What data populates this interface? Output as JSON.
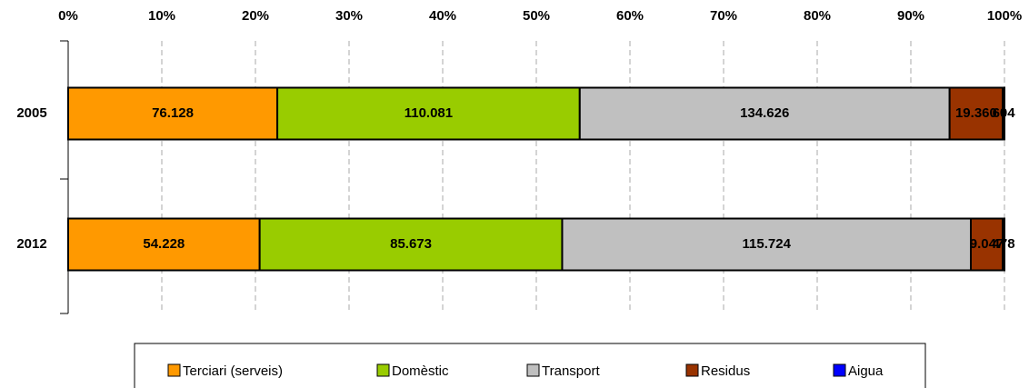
{
  "chart_data": {
    "type": "stacked-bar-100",
    "categories": [
      "2005",
      "2012"
    ],
    "series": [
      {
        "name": "Terciari (serveis)",
        "color": "#ff9900",
        "values": [
          76128,
          54228
        ],
        "value_labels": [
          "76.128",
          "54.228"
        ]
      },
      {
        "name": "Domèstic",
        "color": "#99cc00",
        "values": [
          110081,
          85673
        ],
        "value_labels": [
          "110.081",
          "85.673"
        ]
      },
      {
        "name": "Transport",
        "color": "#c0c0c0",
        "values": [
          134626,
          115724
        ],
        "value_labels": [
          "134.626",
          "115.724"
        ]
      },
      {
        "name": "Residus",
        "color": "#993300",
        "values": [
          19360,
          9047
        ],
        "value_labels": [
          "19.360",
          "9.047"
        ]
      },
      {
        "name": "Aigua",
        "color": "#0000ff",
        "values": [
          604,
          478
        ],
        "value_labels": [
          "604",
          "478"
        ]
      }
    ],
    "xlim": [
      0,
      100
    ],
    "xticks": [
      {
        "value": 0,
        "label": "0%"
      },
      {
        "value": 10,
        "label": "10%"
      },
      {
        "value": 20,
        "label": "20%"
      },
      {
        "value": 30,
        "label": "30%"
      },
      {
        "value": 40,
        "label": "40%"
      },
      {
        "value": 50,
        "label": "50%"
      },
      {
        "value": 60,
        "label": "60%"
      },
      {
        "value": 70,
        "label": "70%"
      },
      {
        "value": 80,
        "label": "80%"
      },
      {
        "value": 90,
        "label": "90%"
      },
      {
        "value": 100,
        "label": "100%"
      }
    ],
    "grid": true,
    "legend": "bottom"
  }
}
